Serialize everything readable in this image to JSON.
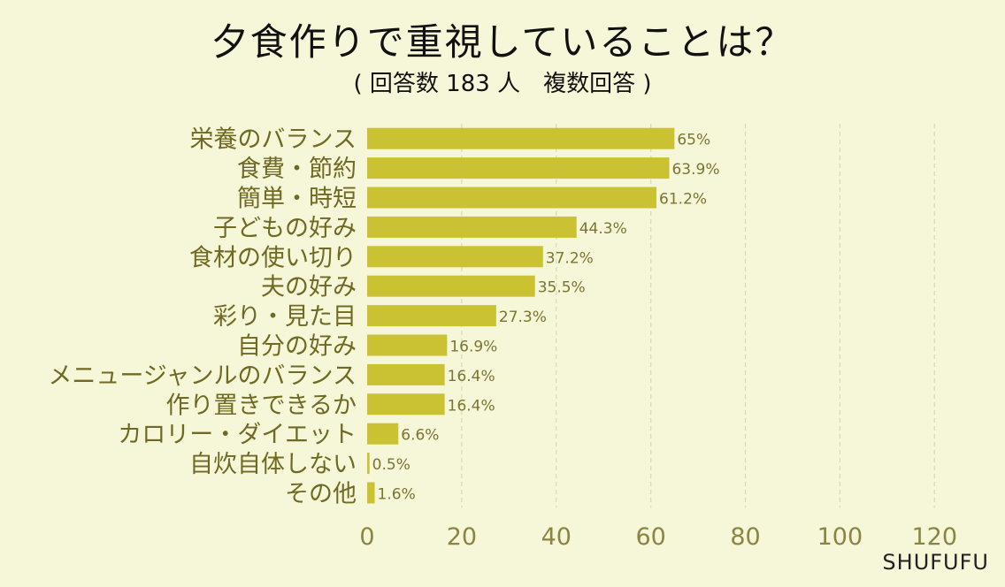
{
  "title": "夕食作りで重視していることは？",
  "subtitle": "( 回答数 183 人　複数回答 )",
  "brand": "SHUFUFU",
  "colors": {
    "bar": "#cac233",
    "background": "#f6f6d8",
    "grid": "#d9d9b4",
    "text": "#6f6a22"
  },
  "chart_data": {
    "type": "bar",
    "orientation": "horizontal",
    "categories": [
      "栄養のバランス",
      "食費・節約",
      "簡単・時短",
      "子どもの好み",
      "食材の使い切り",
      "夫の好み",
      "彩り・見た目",
      "自分の好み",
      "メニュージャンルのバランス",
      "作り置きできるか",
      "カロリー・ダイエット",
      "自炊自体しない",
      "その他"
    ],
    "values": [
      65,
      63.9,
      61.2,
      44.3,
      37.2,
      35.5,
      27.3,
      16.9,
      16.4,
      16.4,
      6.6,
      0.5,
      1.6
    ],
    "labels": [
      "65%",
      "63.9%",
      "61.2%",
      "44.3%",
      "37.2%",
      "35.5%",
      "27.3%",
      "16.9%",
      "16.4%",
      "16.4%",
      "6.6%",
      "0.5%",
      "1.6%"
    ],
    "xticks": [
      0,
      20,
      40,
      60,
      80,
      100,
      120
    ],
    "xlim": [
      0,
      125
    ],
    "grid": "vertical dashed",
    "legend": "none"
  }
}
